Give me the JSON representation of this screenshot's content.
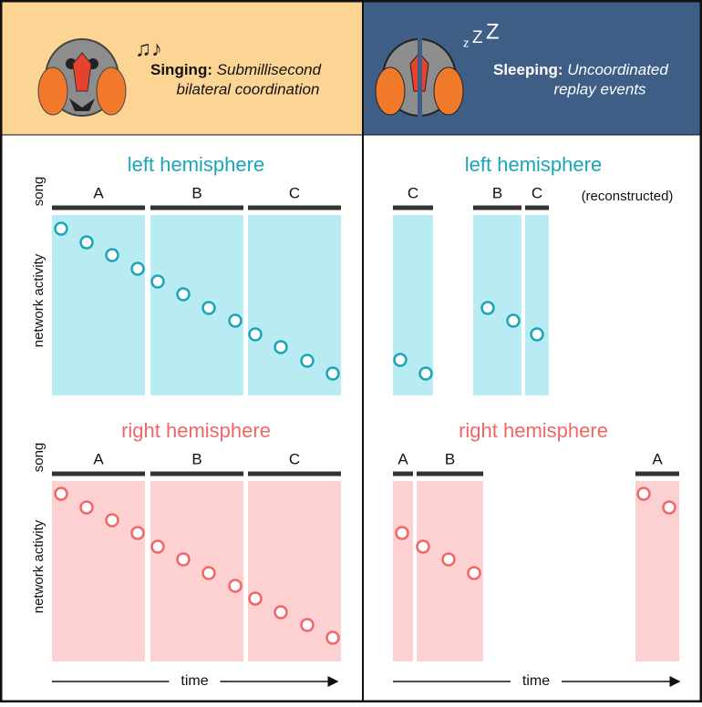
{
  "header": {
    "left": {
      "bold": "Singing:",
      "italic_line1": "Submillisecond",
      "italic_line2": "bilateral coordination"
    },
    "right": {
      "bold": "Sleeping:",
      "italic_line1": "Uncoordinated",
      "italic_line2": "replay events"
    },
    "sleep_letters": [
      "z",
      "Z",
      "Z"
    ]
  },
  "panels": [
    {
      "title": "left hemisphere",
      "segments": [
        "A",
        "B",
        "C"
      ],
      "song_label": "song",
      "activity_label": "network activity"
    },
    {
      "title": "left hemisphere",
      "segments": [
        "C",
        "B",
        "C"
      ],
      "note": "(reconstructed)"
    },
    {
      "title": "right hemisphere",
      "segments": [
        "A",
        "B",
        "C"
      ],
      "song_label": "song",
      "activity_label": "network activity",
      "time_label": "time"
    },
    {
      "title": "right hemisphere",
      "segments": [
        "A",
        "B",
        "A"
      ],
      "time_label": "time"
    }
  ]
}
